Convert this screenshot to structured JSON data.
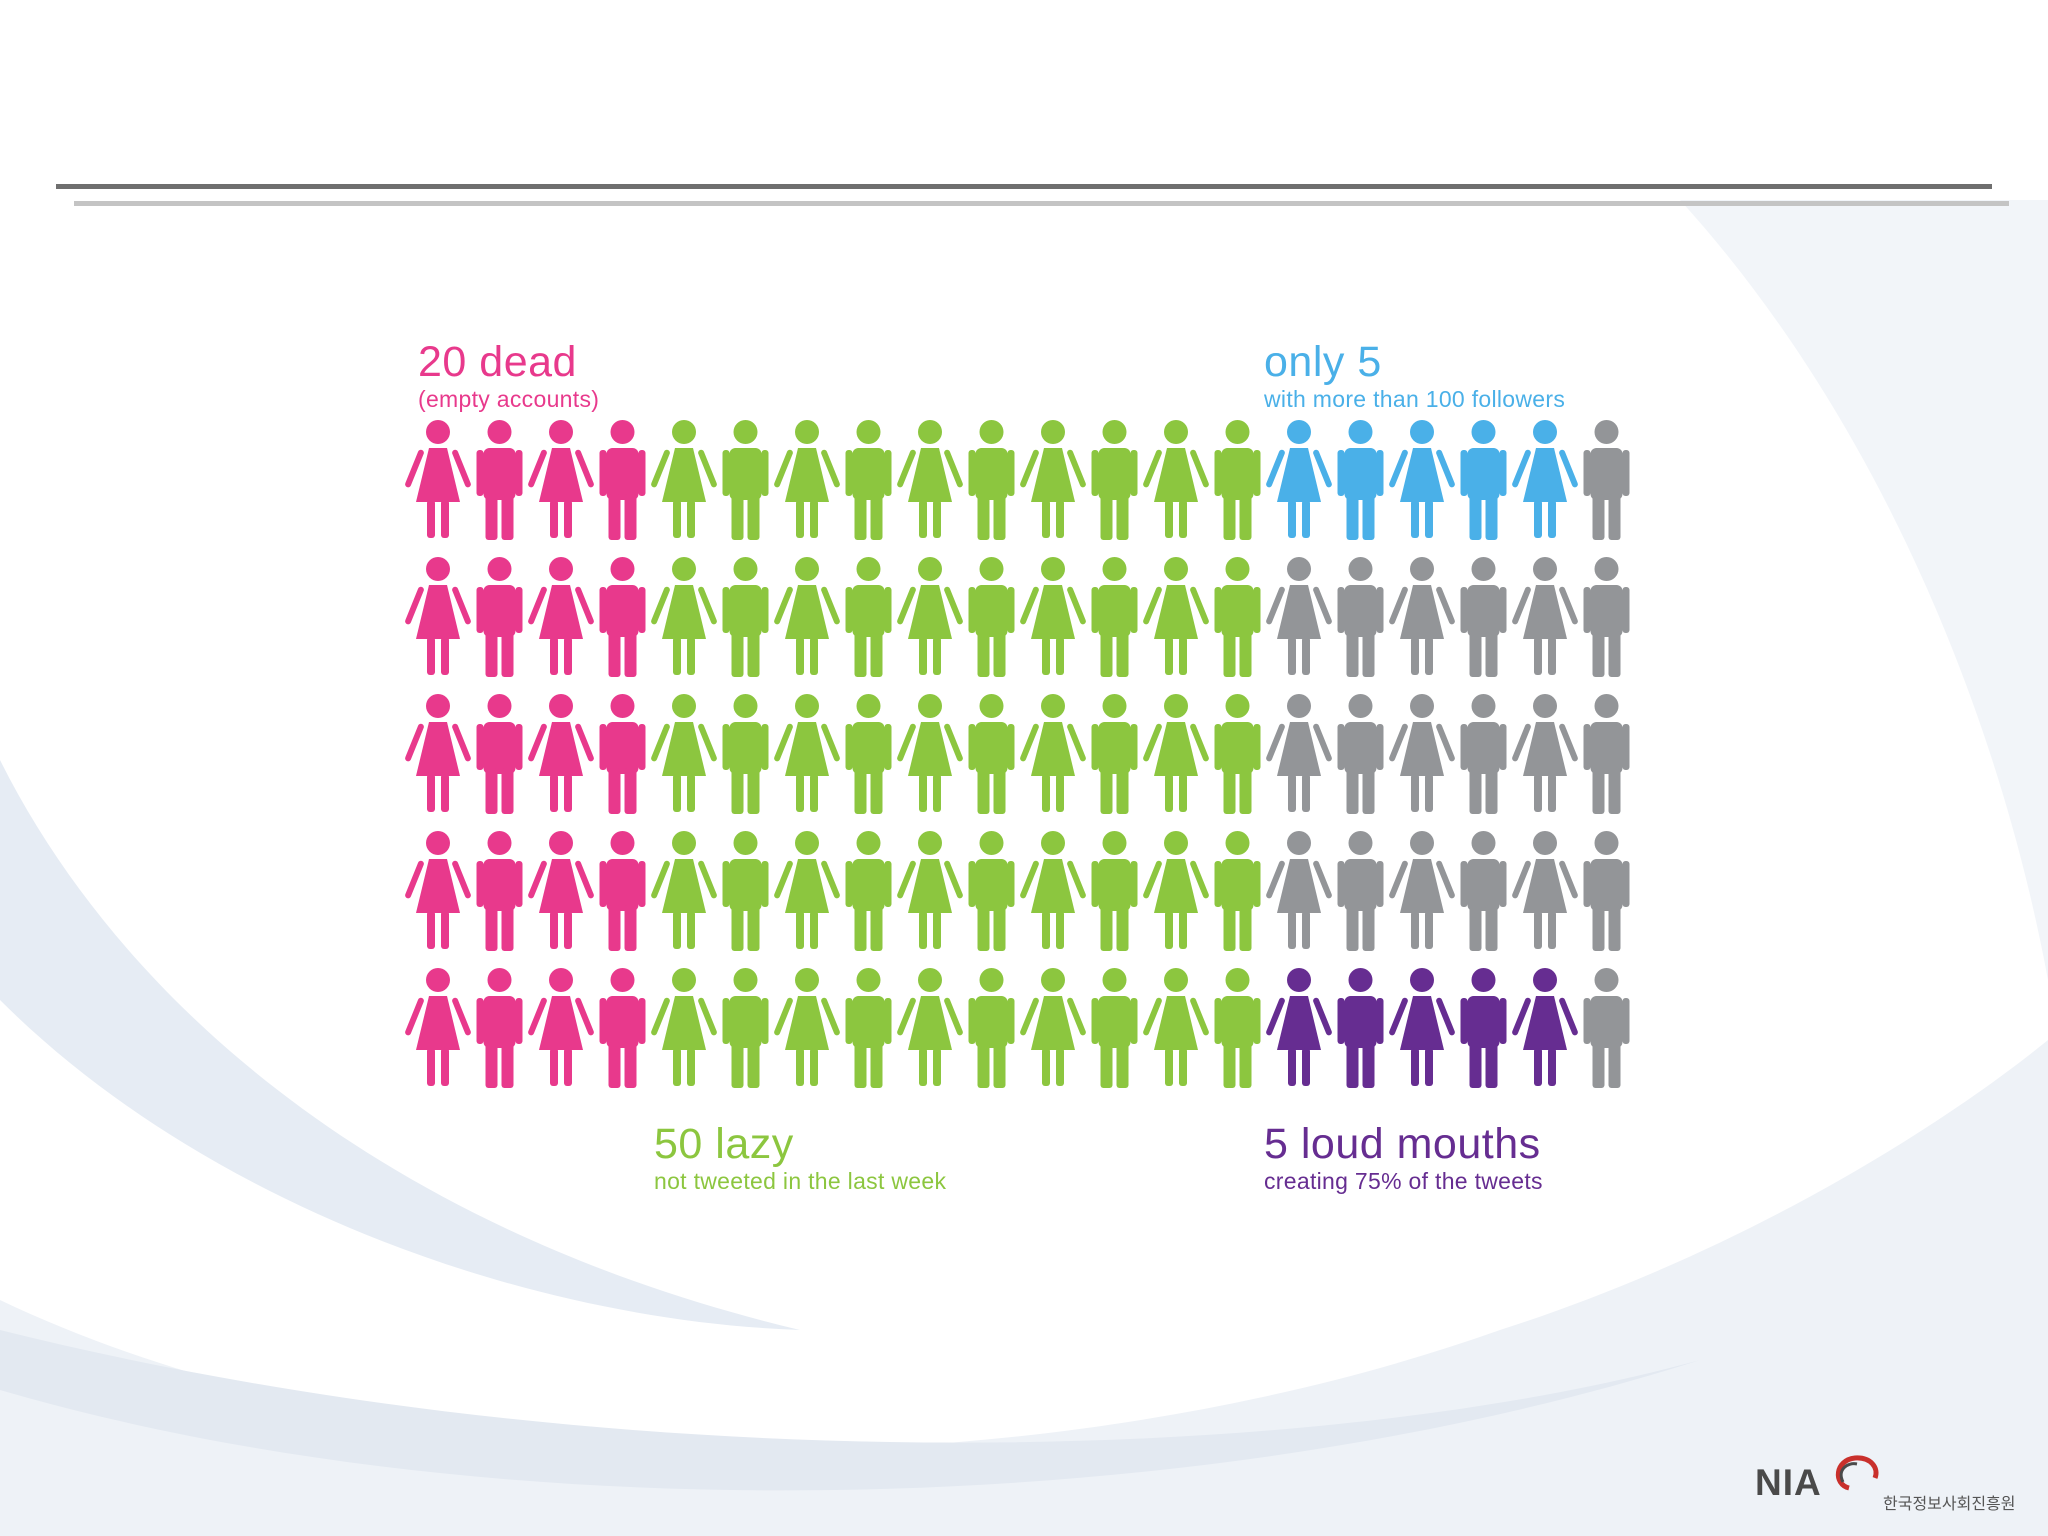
{
  "colors": {
    "rule_top": "#6f6f6f",
    "rule_bottom": "#c4c4c4",
    "dead": "#e8398c",
    "lazy": "#8cc63f",
    "popular": "#4ab0e8",
    "loud": "#662d91",
    "other": "#939598",
    "background_swoosh": "#dbe3ee"
  },
  "chart_data": {
    "type": "pictogram",
    "columns": 20,
    "rows": 5,
    "total": 100,
    "columns_by_group": [
      "dead",
      "dead",
      "dead",
      "dead",
      "lazy",
      "lazy",
      "lazy",
      "lazy",
      "lazy",
      "lazy",
      "lazy",
      "lazy",
      "lazy",
      "lazy",
      "other",
      "other",
      "other",
      "other",
      "other",
      "other"
    ],
    "top_row_override": {
      "group": "popular",
      "columns": [
        14,
        15,
        16,
        17,
        18
      ]
    },
    "bottom_row_override": {
      "group": "loud",
      "columns": [
        14,
        15,
        16,
        17,
        18
      ]
    },
    "groups": [
      {
        "id": "dead",
        "count": 20,
        "title": "20 dead",
        "subtitle": "(empty accounts)"
      },
      {
        "id": "lazy",
        "count": 50,
        "title": "50 lazy",
        "subtitle": "not tweeted in the last week"
      },
      {
        "id": "popular",
        "count": 5,
        "title": "only 5",
        "subtitle": "with more than 100 followers"
      },
      {
        "id": "loud",
        "count": 5,
        "title": "5 loud mouths",
        "subtitle": "creating 75% of the tweets"
      },
      {
        "id": "other",
        "count": 20
      }
    ]
  },
  "logo": {
    "text": "NIA",
    "subtitle": "한국정보사회진흥원"
  }
}
